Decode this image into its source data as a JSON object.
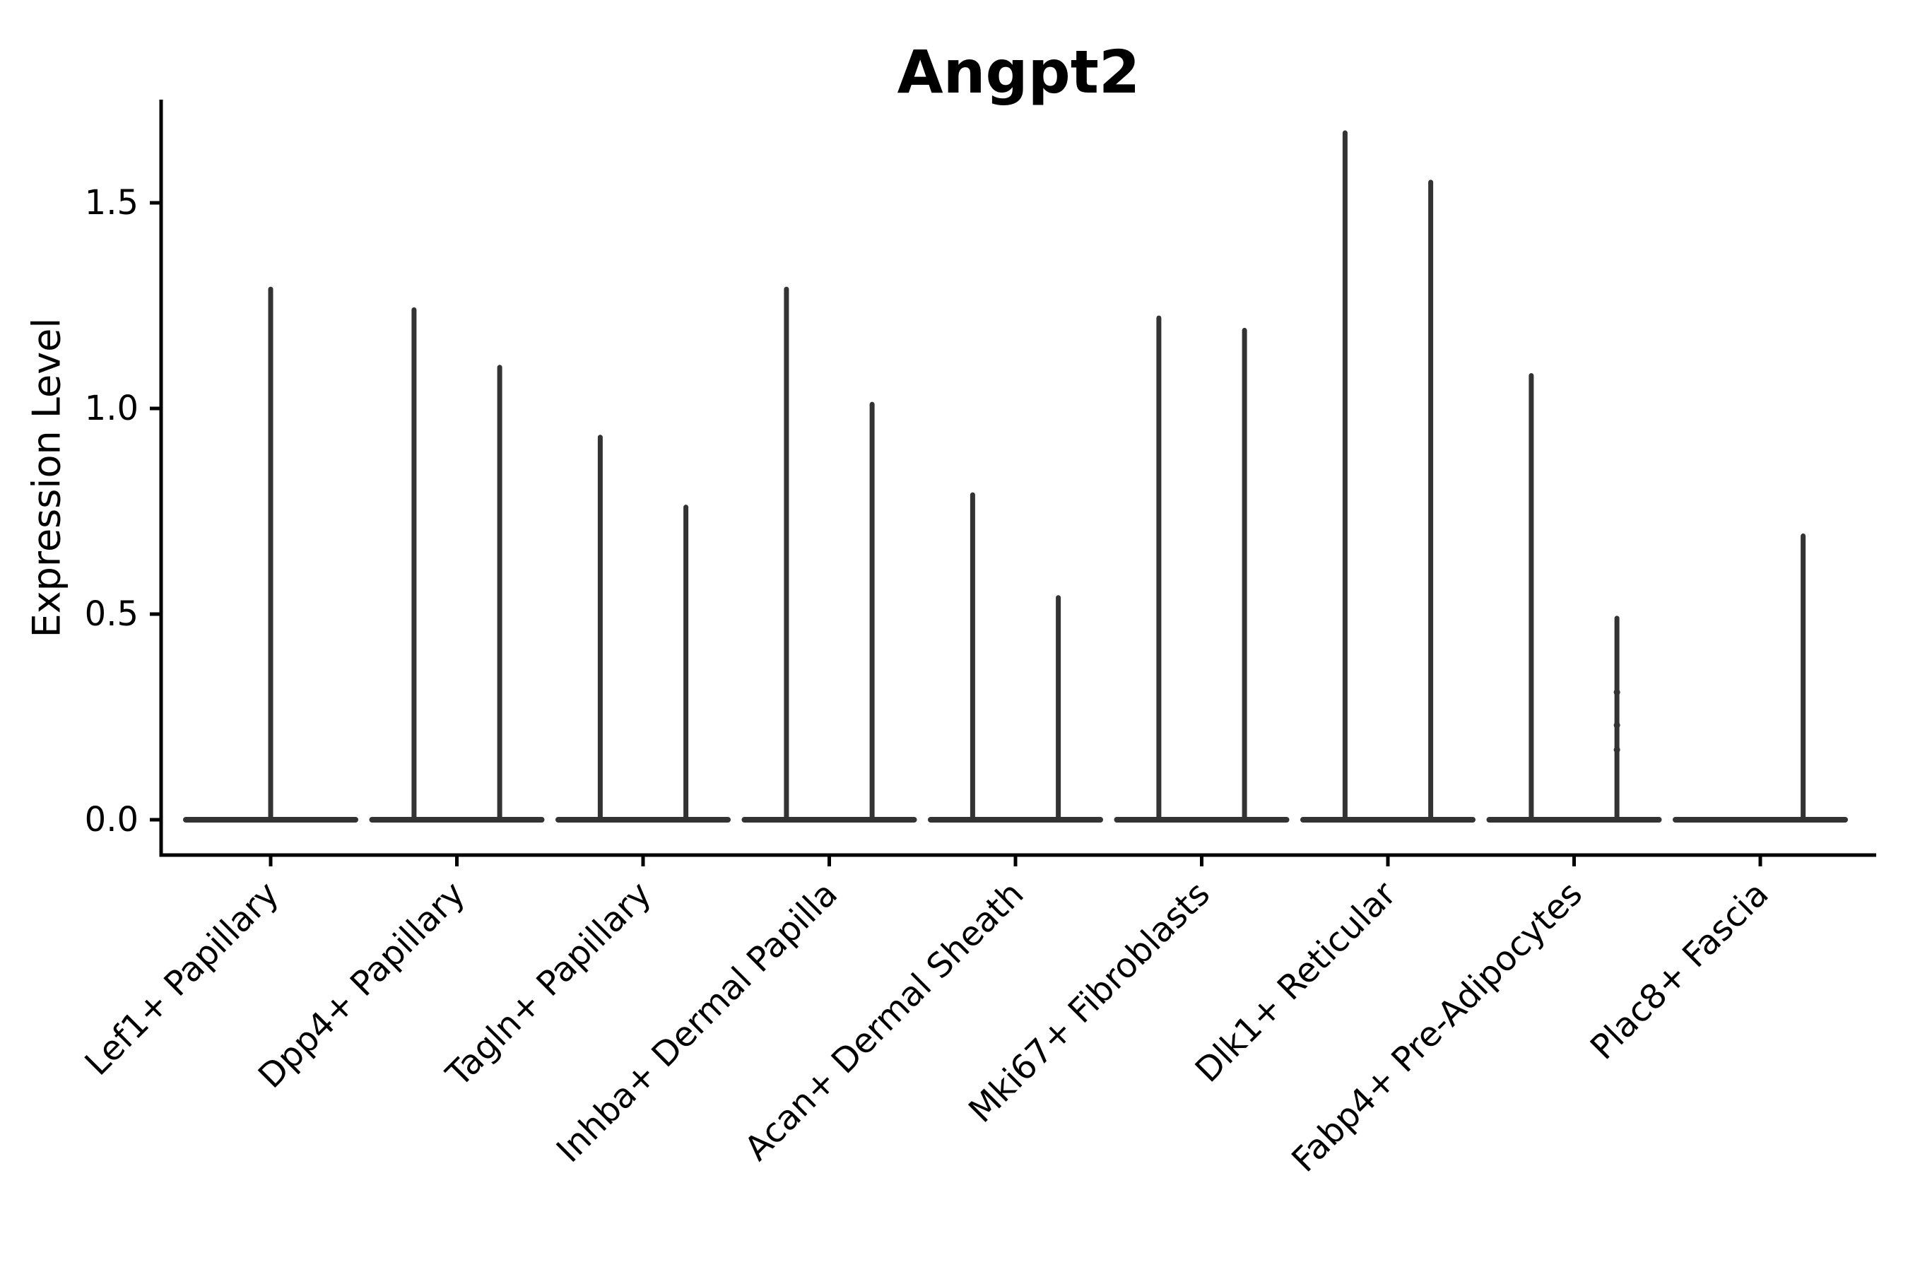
{
  "title": "Angpt2",
  "y_axis": {
    "label": "Expression Level",
    "tick_labels": [
      "0.0",
      "0.5",
      "1.0",
      "1.5"
    ]
  },
  "x_axis": {
    "categories": [
      "Lef1+ Papillary",
      "Dpp4+ Papillary",
      "Tagln+ Papillary",
      "Inhba+ Dermal Papilla",
      "Acan+ Dermal Sheath",
      "Mki67+ Fibroblasts",
      "Dlk1+ Reticular",
      "Fabp4+ Pre-Adipocytes",
      "Plac8+ Fascia"
    ]
  },
  "chart_data": {
    "type": "violin",
    "title": "Angpt2",
    "xlabel": "",
    "ylabel": "Expression Level",
    "ylim": [
      -0.09,
      1.75
    ],
    "grid": false,
    "legend": "none",
    "y_ticks": [
      0.0,
      0.5,
      1.0,
      1.5
    ],
    "y_tick_labels": [
      "0.0",
      "0.5",
      "1.0",
      "1.5"
    ],
    "categories": [
      "Lef1+ Papillary",
      "Dpp4+ Papillary",
      "Tagln+ Papillary",
      "Inhba+ Dermal Papilla",
      "Acan+ Dermal Sheath",
      "Mki67+ Fibroblasts",
      "Dlk1+ Reticular",
      "Fabp4+ Pre-Adipocytes",
      "Plac8+ Fascia"
    ],
    "base_halfwidth": 0.455,
    "notes": "Each category shows a flat density base at expression 0 with thin spikes up to the max expression; pos is the spike offset within the category in category-width units.",
    "violins": [
      {
        "category": "Lef1+ Papillary",
        "spikes": [
          {
            "pos": 0,
            "max": 1.29
          }
        ]
      },
      {
        "category": "Dpp4+ Papillary",
        "spikes": [
          {
            "pos": -0.23,
            "max": 1.24
          },
          {
            "pos": 0.23,
            "max": 1.1
          }
        ]
      },
      {
        "category": "Tagln+ Papillary",
        "spikes": [
          {
            "pos": -0.23,
            "max": 0.93
          },
          {
            "pos": 0.23,
            "max": 0.76
          }
        ]
      },
      {
        "category": "Inhba+ Dermal Papilla",
        "spikes": [
          {
            "pos": -0.23,
            "max": 1.29
          },
          {
            "pos": 0.23,
            "max": 1.01
          }
        ]
      },
      {
        "category": "Acan+ Dermal Sheath",
        "spikes": [
          {
            "pos": -0.23,
            "max": 0.79
          },
          {
            "pos": 0.23,
            "max": 0.54
          }
        ]
      },
      {
        "category": "Mki67+ Fibroblasts",
        "spikes": [
          {
            "pos": -0.23,
            "max": 1.22
          },
          {
            "pos": 0.23,
            "max": 1.19
          }
        ]
      },
      {
        "category": "Dlk1+ Reticular",
        "spikes": [
          {
            "pos": -0.23,
            "max": 1.67
          },
          {
            "pos": 0.23,
            "max": 1.55
          }
        ]
      },
      {
        "category": "Fabp4+ Pre-Adipocytes",
        "spikes": [
          {
            "pos": -0.23,
            "max": 1.08
          },
          {
            "pos": 0.23,
            "max": 0.49,
            "points": [
              0.31,
              0.23,
              0.17
            ]
          }
        ]
      },
      {
        "category": "Plac8+ Fascia",
        "spikes": [
          {
            "pos": 0.23,
            "max": 0.69
          }
        ]
      }
    ]
  },
  "colors": {
    "violin": "#333333",
    "axis": "#000000",
    "text": "#000000",
    "background": "#ffffff"
  }
}
